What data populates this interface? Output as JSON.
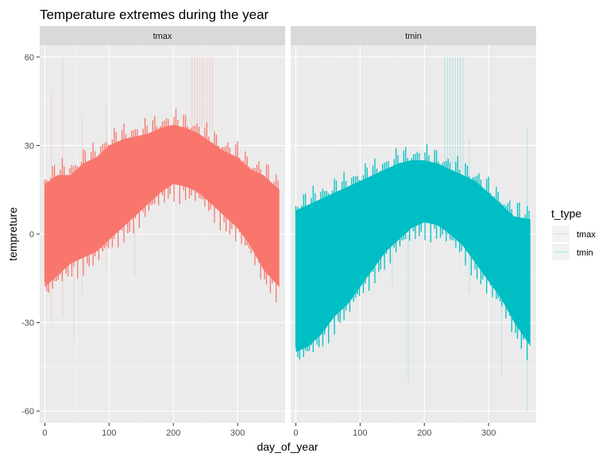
{
  "chart_data": {
    "type": "area",
    "title": "Temperature extremes during the year",
    "xlabel": "day_of_year",
    "ylabel": "tempreture",
    "xlim": [
      -8,
      374
    ],
    "ylim": [
      -64,
      64
    ],
    "x_ticks": [
      0,
      100,
      200,
      300
    ],
    "y_ticks": [
      -60,
      -30,
      0,
      30,
      60
    ],
    "grid": true,
    "facets": [
      {
        "strip_label": "tmax",
        "series": "tmax",
        "color": "#F8766D",
        "band": {
          "x": [
            0,
            20,
            40,
            60,
            80,
            100,
            120,
            140,
            160,
            180,
            200,
            220,
            240,
            260,
            280,
            300,
            320,
            340,
            365
          ],
          "upper": [
            17,
            20,
            20,
            24,
            26,
            30,
            32,
            33,
            34,
            36,
            37,
            36,
            34,
            31,
            28,
            26,
            22,
            20,
            15
          ],
          "lower": [
            -18,
            -14,
            -10,
            -8,
            -6,
            -2,
            2,
            6,
            10,
            14,
            17,
            16,
            14,
            10,
            6,
            2,
            -4,
            -12,
            -18
          ]
        },
        "outliers": [
          {
            "x": 229,
            "low": 36,
            "high": 60
          },
          {
            "x": 233,
            "low": 36,
            "high": 60
          },
          {
            "x": 237,
            "low": 36,
            "high": 60
          },
          {
            "x": 241,
            "low": 36,
            "high": 60
          },
          {
            "x": 245,
            "low": 36,
            "high": 60
          },
          {
            "x": 249,
            "low": 36,
            "high": 60
          },
          {
            "x": 253,
            "low": 36,
            "high": 60
          },
          {
            "x": 257,
            "low": 35,
            "high": 60
          },
          {
            "x": 261,
            "low": 35,
            "high": 60
          },
          {
            "x": 10,
            "low": -30,
            "high": 48
          },
          {
            "x": 28,
            "low": -28,
            "high": 60
          },
          {
            "x": 45,
            "low": -36,
            "high": 10
          },
          {
            "x": 58,
            "low": -20,
            "high": 40
          },
          {
            "x": 96,
            "low": -12,
            "high": 44
          },
          {
            "x": 140,
            "low": -14,
            "high": 2
          }
        ]
      },
      {
        "strip_label": "tmin",
        "series": "tmin",
        "color": "#00BFC4",
        "band": {
          "x": [
            0,
            20,
            40,
            60,
            80,
            100,
            120,
            140,
            160,
            180,
            200,
            220,
            240,
            260,
            280,
            300,
            320,
            340,
            365
          ],
          "upper": [
            8,
            10,
            12,
            14,
            16,
            18,
            20,
            22,
            24,
            25,
            25,
            24,
            22,
            20,
            18,
            14,
            10,
            6,
            5
          ],
          "lower": [
            -40,
            -38,
            -34,
            -28,
            -24,
            -18,
            -12,
            -6,
            -2,
            2,
            4,
            3,
            0,
            -4,
            -10,
            -16,
            -22,
            -30,
            -38
          ]
        },
        "outliers": [
          {
            "x": 232,
            "low": 20,
            "high": 60
          },
          {
            "x": 236,
            "low": 20,
            "high": 60
          },
          {
            "x": 240,
            "low": 20,
            "high": 60
          },
          {
            "x": 244,
            "low": 20,
            "high": 60
          },
          {
            "x": 248,
            "low": 20,
            "high": 60
          },
          {
            "x": 252,
            "low": 20,
            "high": 60
          },
          {
            "x": 256,
            "low": 20,
            "high": 60
          },
          {
            "x": 260,
            "low": 20,
            "high": 60
          },
          {
            "x": 270,
            "low": -20,
            "high": 32
          },
          {
            "x": 360,
            "low": -60,
            "high": 36
          },
          {
            "x": 150,
            "low": -18,
            "high": 12
          },
          {
            "x": 175,
            "low": -50,
            "high": 0
          },
          {
            "x": 320,
            "low": -48,
            "high": -20
          }
        ]
      }
    ],
    "legend": {
      "title": "t_type",
      "position": "right",
      "entries": [
        {
          "label": "tmax",
          "color": "#F8766D"
        },
        {
          "label": "tmin",
          "color": "#00BFC4"
        }
      ]
    }
  }
}
